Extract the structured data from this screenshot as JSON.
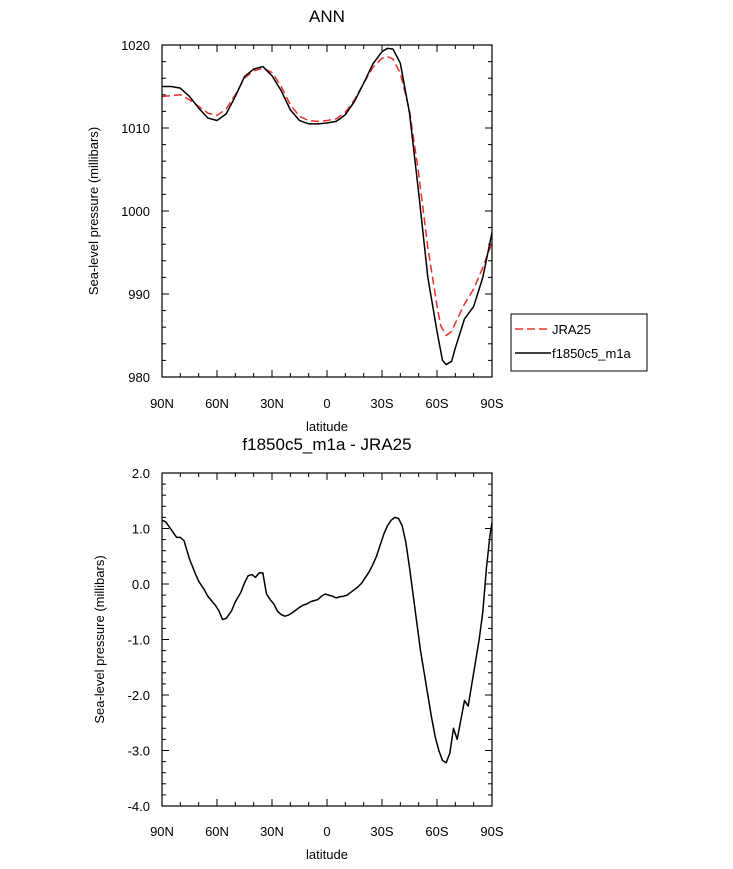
{
  "chart_data": [
    {
      "type": "line",
      "title": "ANN",
      "xlabel": "latitude",
      "ylabel": "Sea-level pressure (millibars)",
      "xlim": [
        90,
        -90
      ],
      "ylim": [
        980,
        1020
      ],
      "xticks": [
        90,
        60,
        30,
        0,
        -30,
        -60,
        -90
      ],
      "xtick_labels": [
        "90N",
        "60N",
        "30N",
        "0",
        "30S",
        "60S",
        "90S"
      ],
      "yticks": [
        980,
        990,
        1000,
        1010,
        1020
      ],
      "ytick_labels": [
        "980",
        "990",
        "1000",
        "1010",
        "1020"
      ],
      "legend": {
        "position": "right",
        "entries": [
          "JRA25",
          "f1850c5_m1a"
        ]
      },
      "series": [
        {
          "name": "JRA25",
          "color": "#e8302a",
          "dash": true,
          "x": [
            90,
            85,
            80,
            75,
            70,
            65,
            60,
            55,
            50,
            45,
            40,
            35,
            30,
            25,
            20,
            15,
            10,
            5,
            0,
            -5,
            -10,
            -15,
            -20,
            -25,
            -30,
            -33,
            -36,
            -40,
            -45,
            -50,
            -55,
            -60,
            -62,
            -65,
            -68,
            -70,
            -75,
            -80,
            -85,
            -90
          ],
          "values": [
            1013.8,
            1013.9,
            1014.0,
            1013.4,
            1012.6,
            1011.8,
            1011.5,
            1012.3,
            1014.0,
            1016.0,
            1016.9,
            1017.2,
            1016.7,
            1015.0,
            1012.8,
            1011.4,
            1010.9,
            1010.8,
            1010.9,
            1011.1,
            1011.9,
            1013.4,
            1015.4,
            1017.3,
            1018.4,
            1018.6,
            1018.3,
            1016.6,
            1012.1,
            1004.5,
            995.6,
            988.6,
            986.2,
            985.0,
            985.5,
            986.5,
            988.8,
            990.6,
            993.2,
            996.2
          ]
        },
        {
          "name": "f1850c5_m1a",
          "color": "#000000",
          "dash": false,
          "x": [
            90,
            85,
            80,
            75,
            70,
            65,
            60,
            55,
            50,
            45,
            40,
            35,
            30,
            25,
            20,
            15,
            10,
            5,
            0,
            -5,
            -10,
            -15,
            -20,
            -25,
            -30,
            -33,
            -36,
            -40,
            -45,
            -50,
            -55,
            -60,
            -63,
            -65,
            -68,
            -70,
            -75,
            -80,
            -85,
            -90
          ],
          "values": [
            1015.0,
            1015.0,
            1014.8,
            1013.8,
            1012.4,
            1011.2,
            1010.9,
            1011.7,
            1013.8,
            1016.2,
            1017.1,
            1017.4,
            1016.3,
            1014.5,
            1012.2,
            1010.9,
            1010.5,
            1010.5,
            1010.6,
            1010.8,
            1011.6,
            1013.2,
            1015.4,
            1017.7,
            1019.2,
            1019.6,
            1019.5,
            1017.8,
            1011.8,
            1002.2,
            992.0,
            985.5,
            982.0,
            981.5,
            981.9,
            983.5,
            987.0,
            988.5,
            992.0,
            997.4
          ]
        }
      ]
    },
    {
      "type": "line",
      "title": "f1850c5_m1a - JRA25",
      "xlabel": "latitude",
      "ylabel": "Sea-level pressure (millibars)",
      "xlim": [
        90,
        -90
      ],
      "ylim": [
        -4.0,
        2.0
      ],
      "xticks": [
        90,
        60,
        30,
        0,
        -30,
        -60,
        -90
      ],
      "xtick_labels": [
        "90N",
        "60N",
        "30N",
        "0",
        "30S",
        "60S",
        "90S"
      ],
      "yticks": [
        -4.0,
        -3.0,
        -2.0,
        -1.0,
        0.0,
        1.0,
        2.0
      ],
      "ytick_labels": [
        "-4.0",
        "-3.0",
        "-2.0",
        "-1.0",
        "0.0",
        "1.0",
        "2.0"
      ],
      "series": [
        {
          "name": "f1850c5_m1a - JRA25",
          "color": "#000000",
          "dash": false,
          "x": [
            90,
            88,
            85,
            82,
            80,
            78,
            75,
            72,
            70,
            67,
            65,
            63,
            61,
            59,
            57,
            55,
            52,
            50,
            47,
            45,
            43,
            41,
            39,
            37,
            35,
            33,
            31,
            29,
            27,
            25,
            23,
            21,
            19,
            17,
            15,
            13,
            11,
            9,
            7,
            5,
            3,
            1,
            -1,
            -3,
            -5,
            -7,
            -9,
            -11,
            -13,
            -15,
            -17,
            -19,
            -21,
            -23,
            -25,
            -27,
            -29,
            -31,
            -33,
            -35,
            -37,
            -39,
            -41,
            -43,
            -45,
            -47,
            -49,
            -51,
            -53,
            -55,
            -57,
            -59,
            -61,
            -63,
            -65,
            -67,
            -69,
            -71,
            -73,
            -75,
            -77,
            -79,
            -81,
            -83,
            -85,
            -87,
            -89,
            -90
          ],
          "values": [
            1.15,
            1.12,
            0.98,
            0.84,
            0.84,
            0.78,
            0.45,
            0.2,
            0.05,
            -0.1,
            -0.22,
            -0.3,
            -0.38,
            -0.48,
            -0.64,
            -0.62,
            -0.48,
            -0.32,
            -0.15,
            0.02,
            0.15,
            0.17,
            0.12,
            0.2,
            0.2,
            -0.18,
            -0.28,
            -0.36,
            -0.49,
            -0.55,
            -0.58,
            -0.56,
            -0.52,
            -0.47,
            -0.42,
            -0.38,
            -0.36,
            -0.32,
            -0.3,
            -0.28,
            -0.22,
            -0.18,
            -0.2,
            -0.22,
            -0.25,
            -0.23,
            -0.22,
            -0.2,
            -0.15,
            -0.1,
            -0.05,
            0.02,
            0.12,
            0.22,
            0.35,
            0.5,
            0.7,
            0.9,
            1.05,
            1.15,
            1.2,
            1.18,
            1.05,
            0.75,
            0.3,
            -0.2,
            -0.7,
            -1.2,
            -1.6,
            -2.0,
            -2.4,
            -2.75,
            -3.0,
            -3.18,
            -3.22,
            -3.05,
            -2.6,
            -2.8,
            -2.45,
            -2.1,
            -2.2,
            -1.8,
            -1.4,
            -1.0,
            -0.5,
            0.3,
            0.9,
            1.1
          ]
        }
      ]
    }
  ]
}
